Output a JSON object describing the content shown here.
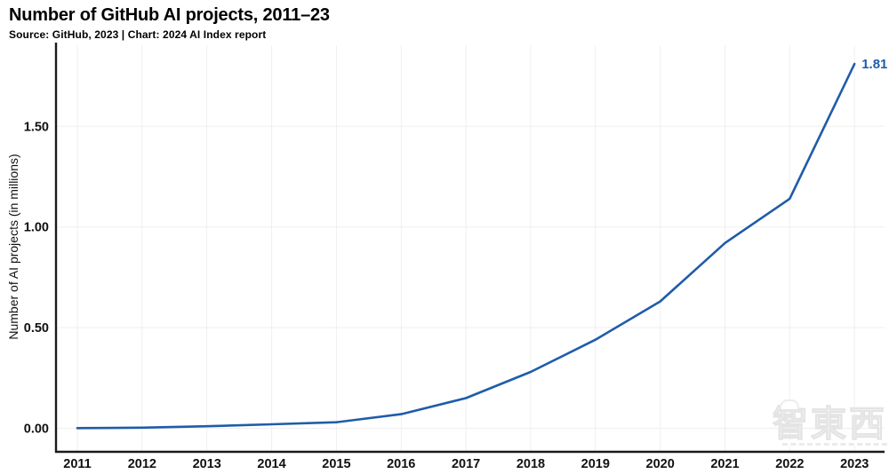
{
  "header": {
    "title": "Number of GitHub AI projects, 2011–23",
    "subtitle": "Source: GitHub, 2023 | Chart: 2024 AI Index report"
  },
  "chart_data": {
    "type": "line",
    "title": "Number of GitHub AI projects, 2011–23",
    "series_name": "GitHub AI projects (millions)",
    "x": [
      2011,
      2012,
      2013,
      2014,
      2015,
      2016,
      2017,
      2018,
      2019,
      2020,
      2021,
      2022,
      2023
    ],
    "values": [
      0.001,
      0.003,
      0.01,
      0.02,
      0.03,
      0.07,
      0.15,
      0.28,
      0.44,
      0.63,
      0.92,
      1.14,
      1.81
    ],
    "xlabel": "",
    "ylabel": "Number of AI projects (in millions)",
    "ylim": [
      0,
      1.92
    ],
    "y_ticks": [
      0,
      0.5,
      1.0,
      1.5
    ],
    "y_tick_labels": [
      "0.00",
      "0.50",
      "1.00",
      "1.50"
    ],
    "end_label": "1.81",
    "grid": true,
    "legend": "none",
    "line_color": "#1f5ca9",
    "axis_color": "#1a1a1a",
    "grid_color": "#efefef",
    "tick_label_color": "#111111"
  },
  "watermark": {
    "text": "智東西"
  }
}
